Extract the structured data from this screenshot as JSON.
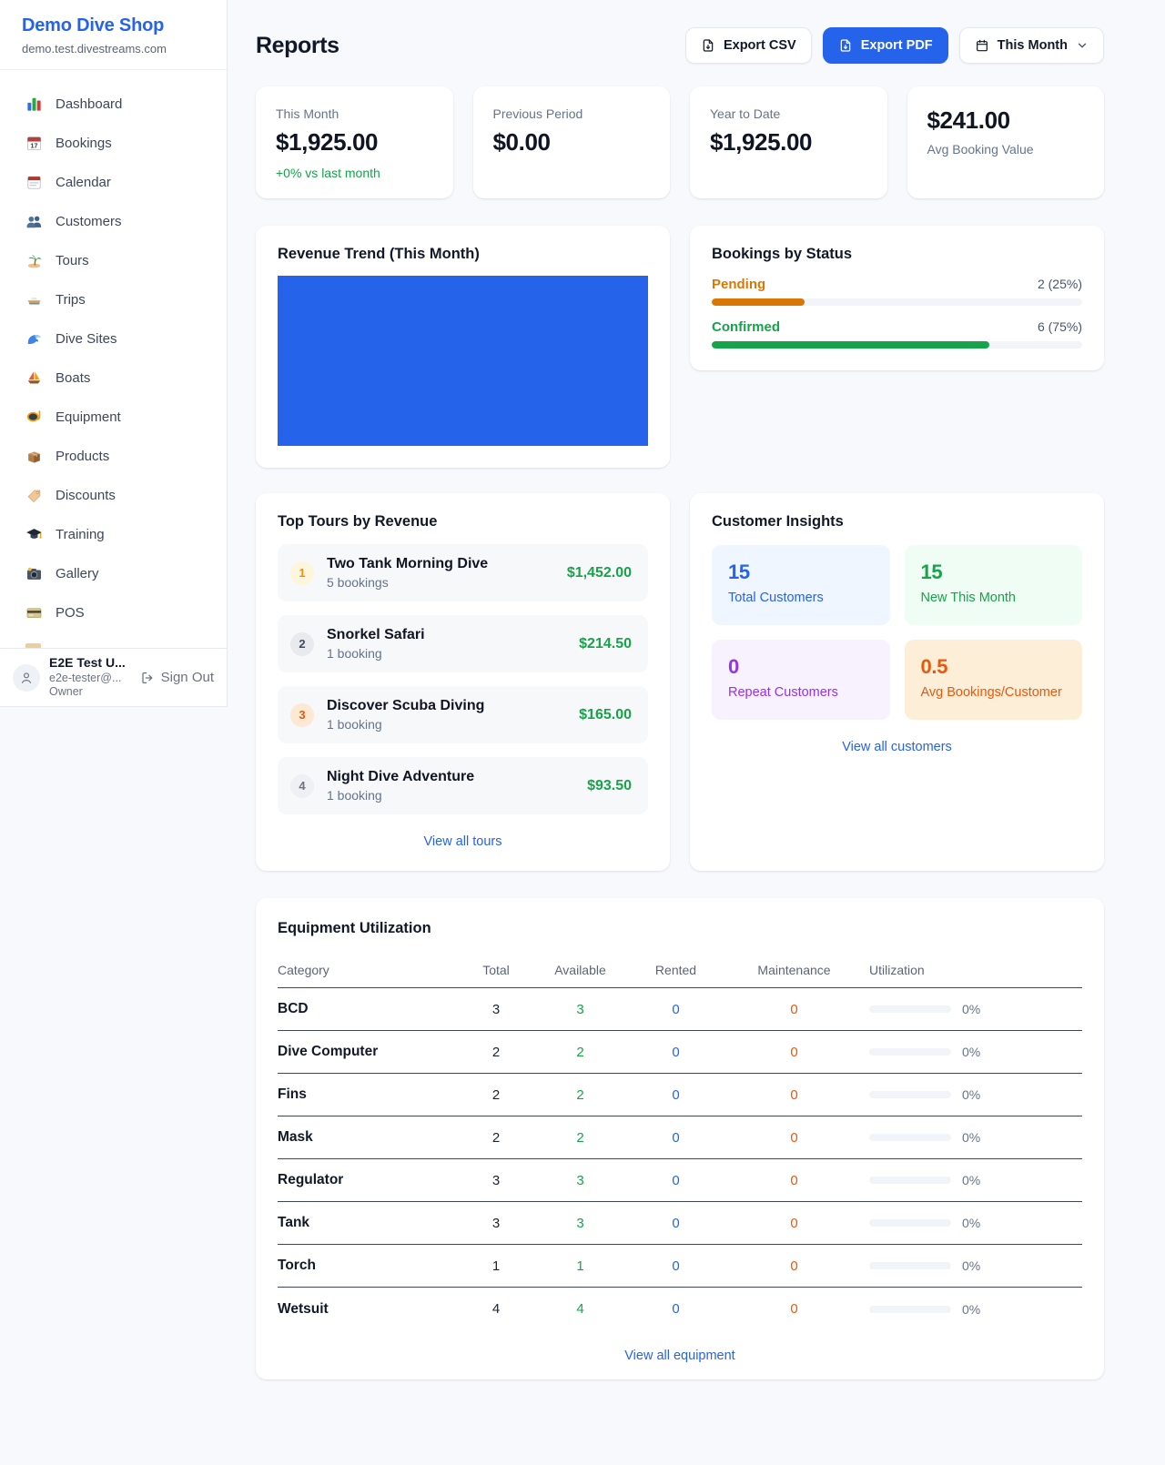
{
  "colors": {
    "accent_blue": "#2563eb",
    "green": "#16a34a",
    "pending_orange": "#d97706",
    "maintenance_orange": "#ea580c",
    "purple": "#9333ea"
  },
  "sidebar": {
    "brand": {
      "name": "Demo Dive Shop",
      "domain": "demo.test.divestreams.com"
    },
    "items": [
      {
        "label": "Dashboard",
        "icon": "dashboard-icon"
      },
      {
        "label": "Bookings",
        "icon": "bookings-icon"
      },
      {
        "label": "Calendar",
        "icon": "calendar-icon"
      },
      {
        "label": "Customers",
        "icon": "customers-icon"
      },
      {
        "label": "Tours",
        "icon": "tours-icon"
      },
      {
        "label": "Trips",
        "icon": "trips-icon"
      },
      {
        "label": "Dive Sites",
        "icon": "dive-sites-icon"
      },
      {
        "label": "Boats",
        "icon": "boats-icon"
      },
      {
        "label": "Equipment",
        "icon": "equipment-icon"
      },
      {
        "label": "Products",
        "icon": "products-icon"
      },
      {
        "label": "Discounts",
        "icon": "discounts-icon"
      },
      {
        "label": "Training",
        "icon": "training-icon"
      },
      {
        "label": "Gallery",
        "icon": "gallery-icon"
      },
      {
        "label": "POS",
        "icon": "pos-icon"
      }
    ],
    "user": {
      "name": "E2E Test U...",
      "email": "e2e-tester@...",
      "role": "Owner",
      "signout_label": "Sign Out"
    }
  },
  "header": {
    "title": "Reports",
    "export_csv_label": "Export CSV",
    "export_pdf_label": "Export PDF",
    "period_label": "This Month"
  },
  "stats": [
    {
      "label": "This Month",
      "value": "$1,925.00",
      "sub": "+0% vs last month"
    },
    {
      "label": "Previous Period",
      "value": "$0.00"
    },
    {
      "label": "Year to Date",
      "value": "$1,925.00"
    },
    {
      "label": "Avg Booking Value",
      "value": "$241.00"
    }
  ],
  "revenue_trend": {
    "title": "Revenue Trend (This Month)"
  },
  "bookings_by_status": {
    "title": "Bookings by Status",
    "rows": [
      {
        "label": "Pending",
        "value": "2 (25%)",
        "pct": 25,
        "color": "#d97706"
      },
      {
        "label": "Confirmed",
        "value": "6 (75%)",
        "pct": 75,
        "color": "#16a34a"
      }
    ]
  },
  "chart_data": [
    {
      "type": "area",
      "title": "Revenue Trend (This Month)",
      "note": "chart area renders as one solid blue filled block, no axes or labels visible",
      "color": "#2563eb"
    },
    {
      "type": "bar",
      "title": "Bookings by Status",
      "categories": [
        "Pending",
        "Confirmed"
      ],
      "values": [
        2,
        6
      ],
      "percents": [
        25,
        75
      ]
    }
  ],
  "top_tours": {
    "title": "Top Tours by Revenue",
    "rows": [
      {
        "rank": "1",
        "name": "Two Tank Morning Dive",
        "bookings": "5 bookings",
        "revenue": "$1,452.00"
      },
      {
        "rank": "2",
        "name": "Snorkel Safari",
        "bookings": "1 booking",
        "revenue": "$214.50"
      },
      {
        "rank": "3",
        "name": "Discover Scuba Diving",
        "bookings": "1 booking",
        "revenue": "$165.00"
      },
      {
        "rank": "4",
        "name": "Night Dive Adventure",
        "bookings": "1 booking",
        "revenue": "$93.50"
      }
    ],
    "link": "View all tours"
  },
  "customer_insights": {
    "title": "Customer Insights",
    "tiles": [
      {
        "value": "15",
        "label": "Total Customers",
        "theme": "blue"
      },
      {
        "value": "15",
        "label": "New This Month",
        "theme": "green"
      },
      {
        "value": "0",
        "label": "Repeat Customers",
        "theme": "purple"
      },
      {
        "value": "0.5",
        "label": "Avg Bookings/Customer",
        "theme": "orange"
      }
    ],
    "link": "View all customers"
  },
  "equipment": {
    "title": "Equipment Utilization",
    "columns": [
      "Category",
      "Total",
      "Available",
      "Rented",
      "Maintenance",
      "Utilization"
    ],
    "rows": [
      {
        "category": "BCD",
        "total": "3",
        "available": "3",
        "rented": "0",
        "maintenance": "0",
        "utilization": "0%",
        "utilization_pct": 0
      },
      {
        "category": "Dive Computer",
        "total": "2",
        "available": "2",
        "rented": "0",
        "maintenance": "0",
        "utilization": "0%",
        "utilization_pct": 0
      },
      {
        "category": "Fins",
        "total": "2",
        "available": "2",
        "rented": "0",
        "maintenance": "0",
        "utilization": "0%",
        "utilization_pct": 0
      },
      {
        "category": "Mask",
        "total": "2",
        "available": "2",
        "rented": "0",
        "maintenance": "0",
        "utilization": "0%",
        "utilization_pct": 0
      },
      {
        "category": "Regulator",
        "total": "3",
        "available": "3",
        "rented": "0",
        "maintenance": "0",
        "utilization": "0%",
        "utilization_pct": 0
      },
      {
        "category": "Tank",
        "total": "3",
        "available": "3",
        "rented": "0",
        "maintenance": "0",
        "utilization": "0%",
        "utilization_pct": 0
      },
      {
        "category": "Torch",
        "total": "1",
        "available": "1",
        "rented": "0",
        "maintenance": "0",
        "utilization": "0%",
        "utilization_pct": 0
      },
      {
        "category": "Wetsuit",
        "total": "4",
        "available": "4",
        "rented": "0",
        "maintenance": "0",
        "utilization": "0%",
        "utilization_pct": 0
      }
    ],
    "link": "View all equipment"
  }
}
